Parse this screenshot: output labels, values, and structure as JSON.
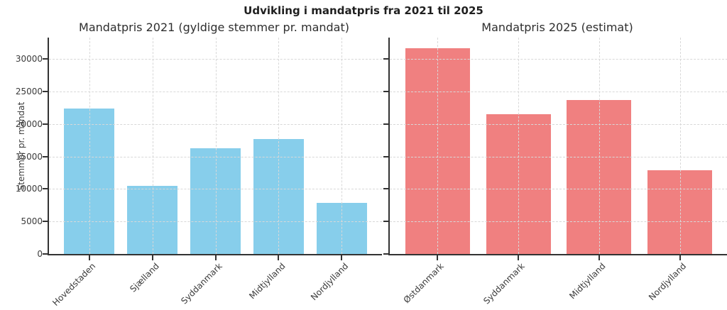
{
  "figure": {
    "title": "Udvikling i mandatpris fra 2021 til 2025",
    "ylabel": "Stemmer pr. mandat"
  },
  "colors": {
    "bar_2021": "#87CEEB",
    "bar_2025": "#F08080",
    "grid": "#d8d8d8",
    "spine": "#333333",
    "title_text": "#1f1f1f",
    "tick_text": "#3b3b3b"
  },
  "chart_data": [
    {
      "type": "bar",
      "title": "Mandatpris 2021 (gyldige stemmer pr. mandat)",
      "categories": [
        "Hovedstaden",
        "Sjælland",
        "Syddanmark",
        "Midtjylland",
        "Nordjylland"
      ],
      "values": [
        22400,
        10500,
        16300,
        17700,
        7900
      ],
      "bar_color": "#87CEEB",
      "xlabel": "",
      "ylabel": "Stemmer pr. mandat",
      "ylim": [
        0,
        33300
      ],
      "yticks": [
        0,
        5000,
        10000,
        15000,
        20000,
        25000,
        30000
      ],
      "grid": true,
      "grid_style": "dashed",
      "ytick_labels_visible": true,
      "xtick_rotation": 45,
      "legend": "none"
    },
    {
      "type": "bar",
      "title": "Mandatpris 2025 (estimat)",
      "categories": [
        "Østdanmark",
        "Syddanmark",
        "Midtjylland",
        "Nordjylland"
      ],
      "values": [
        31700,
        21500,
        23700,
        12900
      ],
      "bar_color": "#F08080",
      "xlabel": "",
      "ylabel": "",
      "ylim": [
        0,
        33300
      ],
      "yticks": [
        0,
        5000,
        10000,
        15000,
        20000,
        25000,
        30000
      ],
      "grid": true,
      "grid_style": "dashed",
      "ytick_labels_visible": false,
      "xtick_rotation": 45,
      "legend": "none"
    }
  ]
}
